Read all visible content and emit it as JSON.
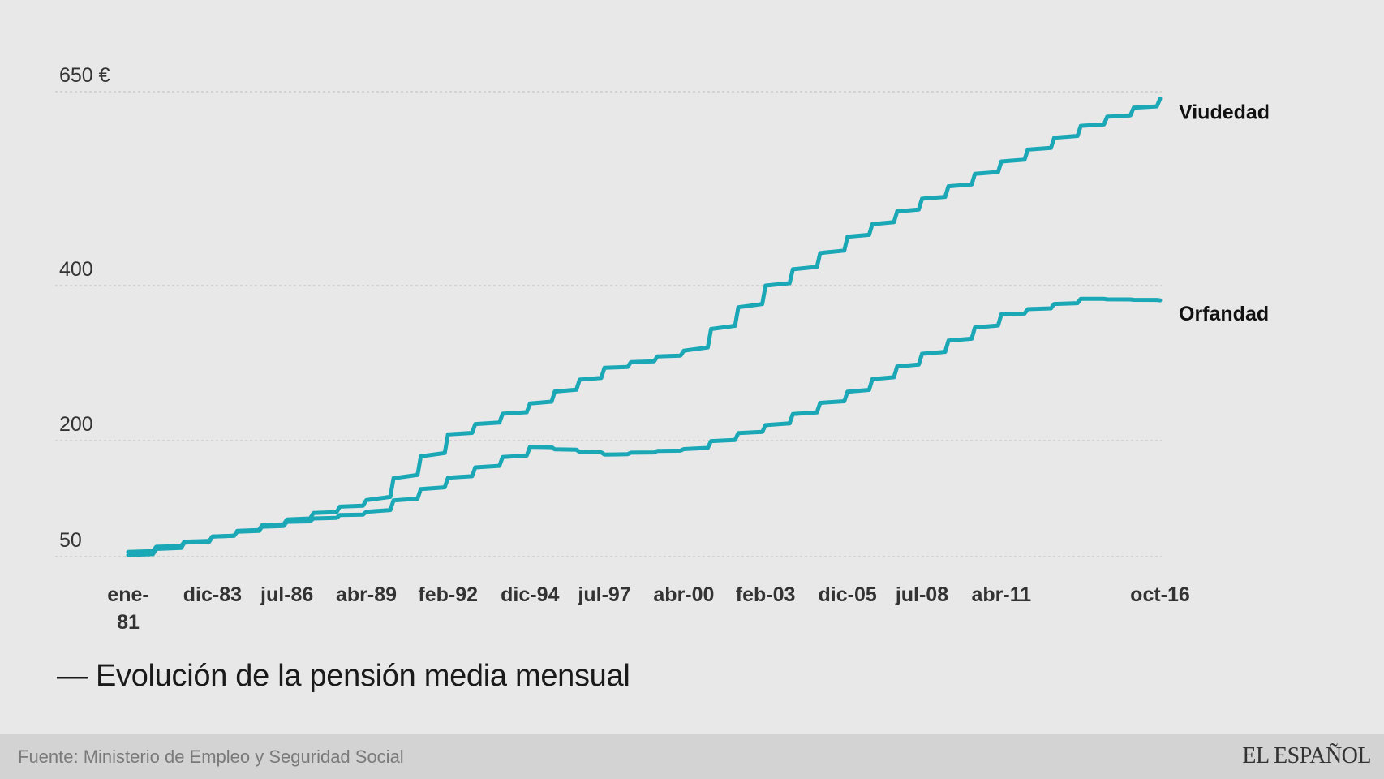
{
  "chart_data": {
    "type": "line",
    "title": "— Evolución de la pensión media mensual",
    "x": [
      1981.0,
      1983.92,
      1986.5,
      1989.25,
      1992.08,
      1994.92,
      1997.5,
      2000.25,
      2003.08,
      2005.92,
      2008.5,
      2011.25,
      2014.0,
      2016.75
    ],
    "x_tick_labels": [
      "ene-81",
      "dic-83",
      "jul-86",
      "abr-89",
      "feb-92",
      "dic-94",
      "jul-97",
      "abr-00",
      "feb-03",
      "dic-05",
      "jul-08",
      "abr-11",
      "",
      "oct-16"
    ],
    "y_ticks": [
      {
        "value": 50,
        "label": "50"
      },
      {
        "value": 200,
        "label": "200"
      },
      {
        "value": 400,
        "label": "400"
      },
      {
        "value": 650,
        "label": "650 €"
      }
    ],
    "ylim": [
      50,
      650
    ],
    "xlim": [
      1981.0,
      2016.75
    ],
    "grid": true,
    "line_color": "#1aa7b6",
    "series": [
      {
        "name": "Viudedad",
        "values": [
          52,
          76,
          98,
          123,
          208,
          248,
          294,
          316,
          400,
          463,
          512,
          560,
          606,
          641
        ]
      },
      {
        "name": "Orfandad",
        "values": [
          56,
          76,
          95,
          108,
          152,
          192,
          182,
          189,
          220,
          263,
          312,
          363,
          383,
          381
        ]
      }
    ]
  },
  "footer": {
    "source": "Fuente: Ministerio de Empleo y Seguridad Social",
    "brand": "EL ESPAÑOL"
  }
}
